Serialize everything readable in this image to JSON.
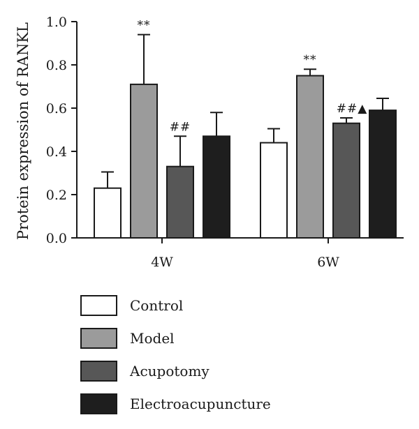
{
  "chart_data": {
    "type": "bar",
    "title": "",
    "xlabel": "",
    "ylabel": "Protein expression of RANKL",
    "ylim": [
      0,
      1.0
    ],
    "yticks": [
      "0.0",
      "0.2",
      "0.4",
      "0.6",
      "0.8",
      "1.0"
    ],
    "categories": [
      "4W",
      "6W"
    ],
    "grid": false,
    "legend_position": "bottom",
    "series": [
      {
        "name": "Control",
        "color": "#ffffff",
        "values": [
          0.23,
          0.44
        ],
        "errors": [
          0.075,
          0.065
        ],
        "annotations": [
          "",
          ""
        ]
      },
      {
        "name": "Model",
        "color": "#9b9b9b",
        "values": [
          0.71,
          0.75
        ],
        "errors": [
          0.23,
          0.03
        ],
        "annotations": [
          "**",
          "**"
        ]
      },
      {
        "name": "Acupotomy",
        "color": "#575757",
        "values": [
          0.33,
          0.53
        ],
        "errors": [
          0.14,
          0.025
        ],
        "annotations": [
          "##",
          "##▲"
        ]
      },
      {
        "name": "Electroacupuncture",
        "color": "#1e1e1e",
        "values": [
          0.47,
          0.59
        ],
        "errors": [
          0.11,
          0.055
        ],
        "annotations": [
          "",
          ""
        ]
      }
    ]
  }
}
